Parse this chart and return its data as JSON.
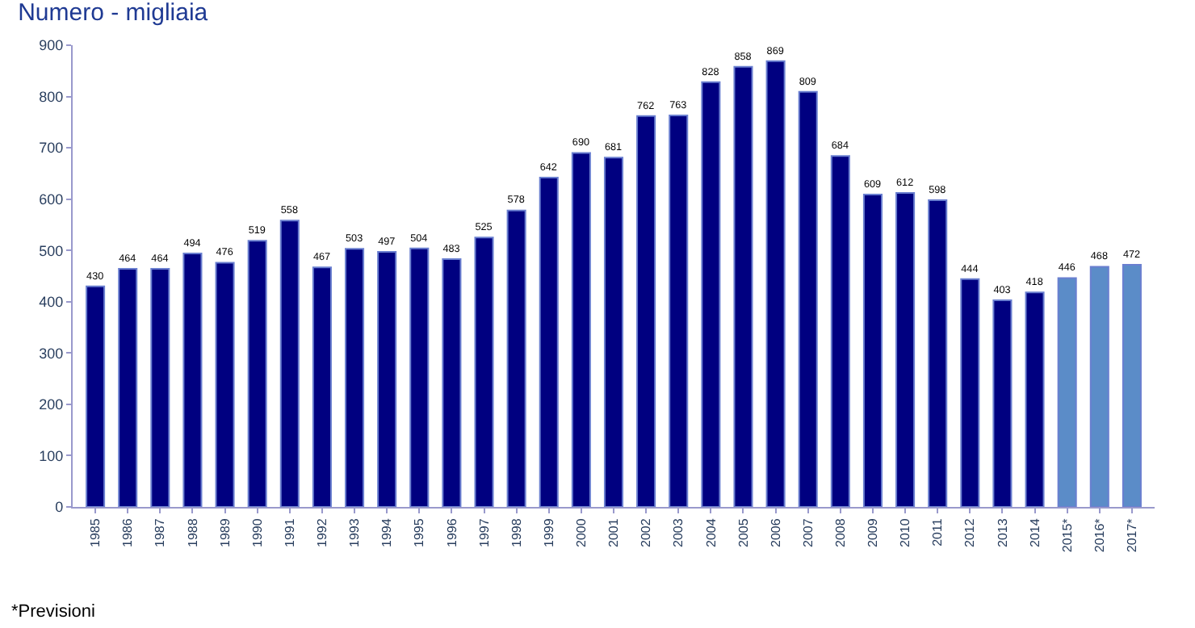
{
  "chart_data": {
    "type": "bar",
    "title": "Numero - migliaia",
    "categories": [
      "1985",
      "1986",
      "1987",
      "1988",
      "1989",
      "1990",
      "1991",
      "1992",
      "1993",
      "1994",
      "1995",
      "1996",
      "1997",
      "1998",
      "1999",
      "2000",
      "2001",
      "2002",
      "2003",
      "2004",
      "2005",
      "2006",
      "2007",
      "2008",
      "2009",
      "2010",
      "2011",
      "2012",
      "2013",
      "2014",
      "2015*",
      "2016*",
      "2017*"
    ],
    "values": [
      430,
      464,
      464,
      494,
      476,
      519,
      558,
      467,
      503,
      497,
      504,
      483,
      525,
      578,
      642,
      690,
      681,
      762,
      763,
      828,
      858,
      869,
      809,
      684,
      609,
      612,
      598,
      444,
      403,
      418,
      446,
      468,
      472
    ],
    "colors": [
      "#000080",
      "#000080",
      "#000080",
      "#000080",
      "#000080",
      "#000080",
      "#000080",
      "#000080",
      "#000080",
      "#000080",
      "#000080",
      "#000080",
      "#000080",
      "#000080",
      "#000080",
      "#000080",
      "#000080",
      "#000080",
      "#000080",
      "#000080",
      "#000080",
      "#000080",
      "#000080",
      "#000080",
      "#000080",
      "#000080",
      "#000080",
      "#000080",
      "#000080",
      "#000080",
      "#5b8cc8",
      "#5b8cc8",
      "#5b8cc8"
    ],
    "ylim": [
      0,
      900
    ],
    "yticks": [
      0,
      100,
      200,
      300,
      400,
      500,
      600,
      700,
      800,
      900
    ],
    "legend": false,
    "data_labels": true,
    "annotations": [
      "*Previsioni"
    ]
  }
}
